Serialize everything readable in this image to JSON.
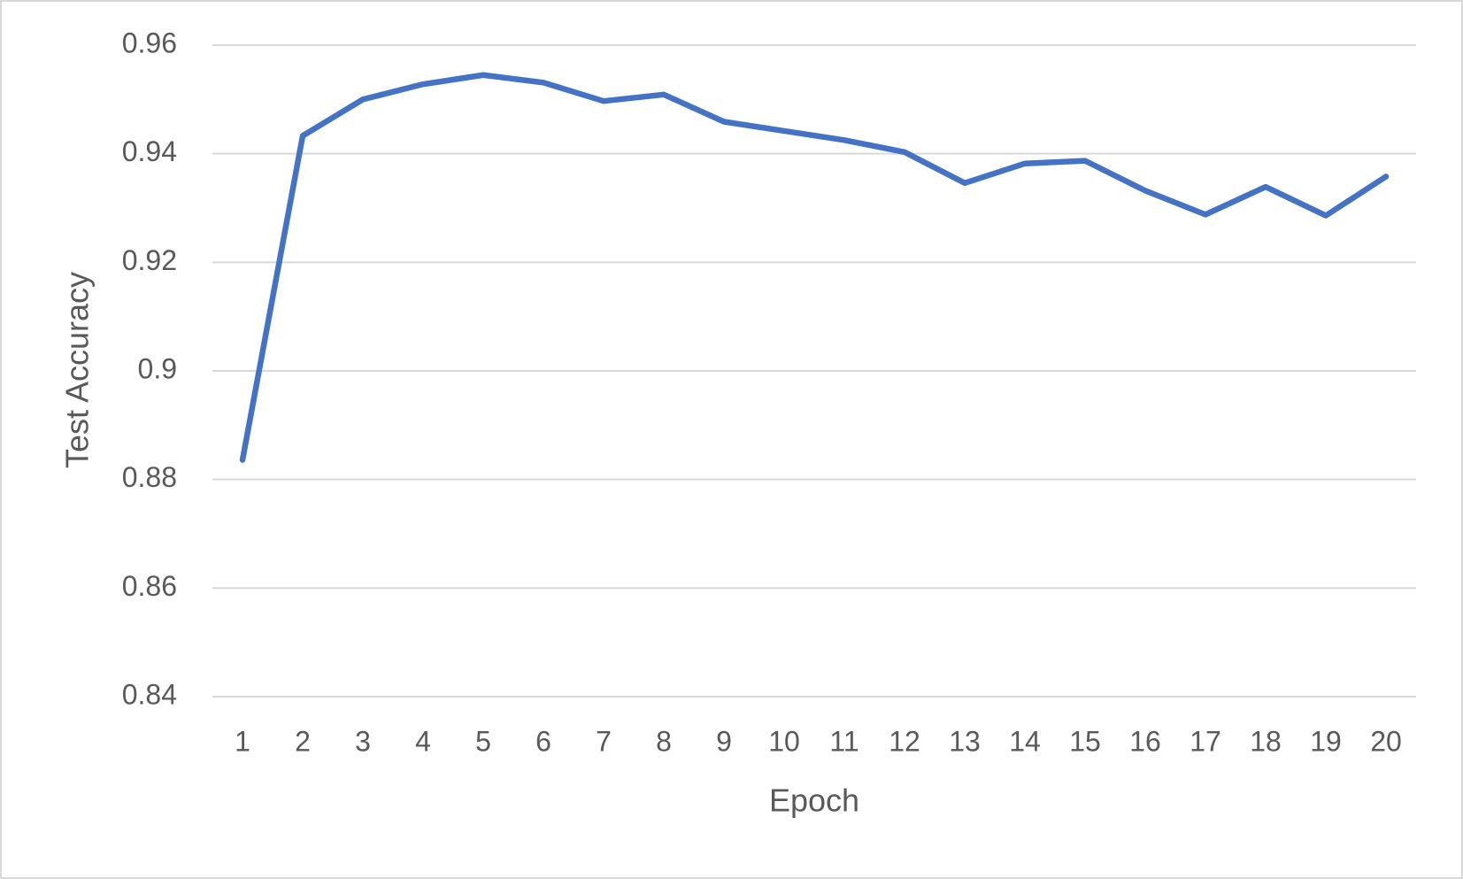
{
  "chart_data": {
    "type": "line",
    "x_label": "Epoch",
    "y_label": "Test Accuracy",
    "categories": [
      "1",
      "2",
      "3",
      "4",
      "5",
      "6",
      "7",
      "8",
      "9",
      "10",
      "11",
      "12",
      "13",
      "14",
      "15",
      "16",
      "17",
      "18",
      "19",
      "20"
    ],
    "values": [
      0.8836,
      0.9433,
      0.95,
      0.9528,
      0.9545,
      0.9531,
      0.9497,
      0.9509,
      0.9459,
      0.9442,
      0.9425,
      0.9403,
      0.9346,
      0.9382,
      0.9387,
      0.9332,
      0.9288,
      0.9339,
      0.9286,
      0.9358
    ],
    "color": "#4472c4",
    "ylim": [
      0.84,
      0.96
    ],
    "yticks": [
      0.84,
      0.86,
      0.88,
      0.9,
      0.92,
      0.94,
      0.96
    ],
    "grid": true
  }
}
